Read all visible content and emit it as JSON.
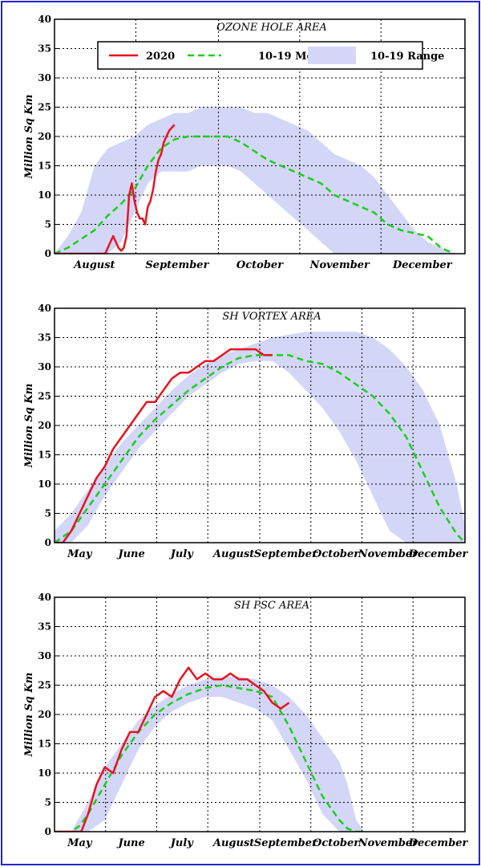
{
  "colors": {
    "obs_2020": "#e8141e",
    "mean": "#18d018",
    "range": "#d4d6f8",
    "frame": "#2424d8"
  },
  "legend": {
    "entries": [
      {
        "label": "2020",
        "kind": "line"
      },
      {
        "label": "10-19 Mean",
        "kind": "dashed"
      },
      {
        "label": "10-19 Range",
        "kind": "band"
      }
    ]
  },
  "chart_data": [
    {
      "type": "line",
      "title": "OZONE HOLE AREA",
      "ylabel": "Million Sq Km",
      "xlabel": "",
      "ylim": [
        0,
        40
      ],
      "yticks": [
        0,
        5,
        10,
        15,
        20,
        25,
        30,
        35,
        40
      ],
      "xlim": [
        0,
        154
      ],
      "months": [
        {
          "label": "August",
          "day": 15
        },
        {
          "label": "September",
          "day": 46
        },
        {
          "label": "October",
          "day": 77
        },
        {
          "label": "November",
          "day": 107
        },
        {
          "label": "December",
          "day": 138
        }
      ],
      "grid": true,
      "legend_position": "top",
      "range": {
        "x": [
          0,
          5,
          10,
          15,
          20,
          25,
          30,
          35,
          40,
          45,
          50,
          55,
          60,
          65,
          70,
          75,
          80,
          85,
          90,
          95,
          100,
          105,
          110,
          115,
          120,
          125,
          130,
          135,
          140,
          145,
          150
        ],
        "low": [
          0,
          0,
          0,
          0,
          0,
          2,
          7,
          12,
          14,
          14,
          14,
          15,
          15,
          15,
          14,
          12,
          10,
          8,
          6,
          4,
          2,
          0,
          0,
          0,
          0,
          0,
          0,
          0,
          0,
          0,
          0
        ],
        "high": [
          0,
          3,
          7,
          15,
          18,
          19,
          20,
          22,
          23,
          24,
          24,
          25,
          25,
          25,
          25,
          24,
          24,
          23,
          22,
          21,
          19,
          17,
          16,
          15,
          13,
          10,
          7,
          4,
          2,
          1,
          0
        ]
      },
      "series": [
        {
          "name": "2020",
          "x": [
            0,
            10,
            19,
            20,
            21,
            22,
            23,
            24,
            25,
            26,
            27,
            28,
            29,
            30,
            31,
            32,
            33,
            34,
            35,
            36,
            37,
            38,
            39,
            40,
            41,
            42,
            43,
            44,
            45
          ],
          "values": [
            0,
            0,
            0,
            1,
            2,
            3,
            2,
            1,
            0.5,
            1,
            3,
            10,
            12,
            9,
            7,
            6,
            6,
            5,
            8,
            9,
            11,
            14,
            16,
            17,
            19,
            20,
            21,
            21.5,
            22
          ]
        },
        {
          "name": "10-19 Mean",
          "x": [
            0,
            5,
            10,
            15,
            20,
            25,
            30,
            35,
            40,
            45,
            50,
            55,
            60,
            65,
            70,
            75,
            80,
            85,
            90,
            95,
            100,
            105,
            110,
            115,
            120,
            125,
            130,
            135,
            140,
            145,
            150
          ],
          "values": [
            0,
            1,
            2.5,
            4,
            6.5,
            8.5,
            11,
            15,
            18,
            19.5,
            20,
            20,
            20,
            20,
            19,
            17.5,
            16,
            15,
            14,
            13,
            12,
            10,
            9,
            8,
            7,
            5,
            4,
            3.5,
            3,
            1,
            0
          ]
        }
      ]
    },
    {
      "type": "line",
      "title": "SH VORTEX AREA",
      "ylabel": "Million Sq Km",
      "xlabel": "",
      "ylim": [
        0,
        40
      ],
      "yticks": [
        0,
        5,
        10,
        15,
        20,
        25,
        30,
        35,
        40
      ],
      "xlim": [
        0,
        245
      ],
      "months": [
        {
          "label": "May",
          "day": 15
        },
        {
          "label": "June",
          "day": 46
        },
        {
          "label": "July",
          "day": 76
        },
        {
          "label": "August",
          "day": 107
        },
        {
          "label": "September",
          "day": 138
        },
        {
          "label": "October",
          "day": 168
        },
        {
          "label": "November",
          "day": 199
        },
        {
          "label": "December",
          "day": 229
        }
      ],
      "grid": true,
      "range": {
        "x": [
          0,
          10,
          20,
          30,
          40,
          50,
          60,
          70,
          80,
          90,
          100,
          110,
          120,
          130,
          140,
          150,
          160,
          170,
          180,
          190,
          200,
          210,
          220,
          230,
          240,
          245
        ],
        "low": [
          0,
          0,
          3,
          8,
          12,
          16,
          19,
          22,
          25,
          27,
          29,
          30.5,
          31,
          31,
          29,
          26,
          23,
          19,
          14,
          8,
          2,
          0,
          0,
          0,
          0,
          0
        ],
        "high": [
          2,
          5,
          9,
          13,
          17,
          20,
          23,
          26,
          28.5,
          30.5,
          32,
          33,
          34,
          35,
          35.5,
          36,
          36,
          36,
          36,
          35,
          33,
          30,
          26,
          20,
          10,
          3
        ]
      },
      "series": [
        {
          "name": "2020",
          "x": [
            0,
            5,
            10,
            15,
            20,
            25,
            30,
            35,
            40,
            45,
            50,
            55,
            60,
            65,
            70,
            75,
            80,
            85,
            90,
            95,
            100,
            105,
            110,
            115,
            120,
            125,
            130
          ],
          "values": [
            0,
            0,
            2,
            5,
            8,
            11,
            13,
            16,
            18,
            20,
            22,
            24,
            24,
            26,
            28,
            29,
            29,
            30,
            31,
            31,
            32,
            33,
            33,
            33,
            33,
            32,
            32
          ]
        },
        {
          "name": "10-19 Mean",
          "x": [
            0,
            10,
            20,
            30,
            40,
            50,
            60,
            70,
            80,
            90,
            100,
            110,
            120,
            130,
            140,
            150,
            160,
            170,
            180,
            190,
            200,
            210,
            220,
            230,
            240,
            245
          ],
          "values": [
            0,
            2,
            6,
            10,
            14,
            18,
            21,
            23.5,
            26,
            28,
            30,
            31.5,
            32,
            32,
            32,
            31,
            30.5,
            29,
            27,
            25,
            22,
            18,
            12,
            6,
            1.5,
            0
          ]
        }
      ]
    },
    {
      "type": "line",
      "title": "SH PSC AREA",
      "ylabel": "Million Sq Km",
      "xlabel": "",
      "ylim": [
        0,
        40
      ],
      "yticks": [
        0,
        5,
        10,
        15,
        20,
        25,
        30,
        35,
        40
      ],
      "xlim": [
        0,
        245
      ],
      "months": [
        {
          "label": "May",
          "day": 15
        },
        {
          "label": "June",
          "day": 46
        },
        {
          "label": "July",
          "day": 76
        },
        {
          "label": "August",
          "day": 107
        },
        {
          "label": "September",
          "day": 138
        },
        {
          "label": "October",
          "day": 168
        },
        {
          "label": "November",
          "day": 199
        },
        {
          "label": "December",
          "day": 229
        }
      ],
      "grid": true,
      "range": {
        "x": [
          0,
          10,
          20,
          30,
          40,
          50,
          60,
          70,
          80,
          90,
          100,
          110,
          120,
          130,
          140,
          150,
          160,
          170,
          175,
          180,
          185
        ],
        "low": [
          0,
          0,
          0,
          2,
          8,
          14,
          18,
          20.5,
          22,
          23,
          23,
          22,
          21,
          19,
          14,
          9,
          3,
          0,
          0,
          0,
          0
        ],
        "high": [
          0,
          0,
          5,
          11,
          15,
          19,
          21.5,
          23.5,
          25,
          26,
          26.5,
          26.5,
          26,
          25,
          23,
          20,
          16,
          12,
          8,
          2,
          0
        ]
      },
      "series": [
        {
          "name": "2020",
          "x": [
            0,
            10,
            13,
            16,
            20,
            25,
            30,
            35,
            40,
            45,
            50,
            55,
            60,
            65,
            70,
            75,
            80,
            85,
            90,
            95,
            100,
            105,
            110,
            115,
            120,
            125,
            130,
            135,
            140
          ],
          "values": [
            0,
            0,
            0,
            0,
            3,
            8,
            11,
            10,
            14,
            17,
            17,
            20,
            23,
            24,
            23,
            26,
            28,
            26,
            27,
            26,
            26,
            27,
            26,
            26,
            25,
            24,
            22,
            21,
            22
          ]
        },
        {
          "name": "10-19 Mean",
          "x": [
            0,
            5,
            10,
            15,
            20,
            30,
            40,
            50,
            60,
            70,
            80,
            90,
            100,
            110,
            120,
            130,
            140,
            150,
            160,
            170,
            175,
            180,
            185
          ],
          "values": [
            0,
            0,
            0,
            1,
            3,
            8,
            13,
            17,
            20,
            22,
            23.5,
            24.5,
            25,
            24.5,
            24,
            23,
            18,
            12,
            6,
            2,
            0.5,
            0,
            0
          ]
        }
      ]
    }
  ]
}
